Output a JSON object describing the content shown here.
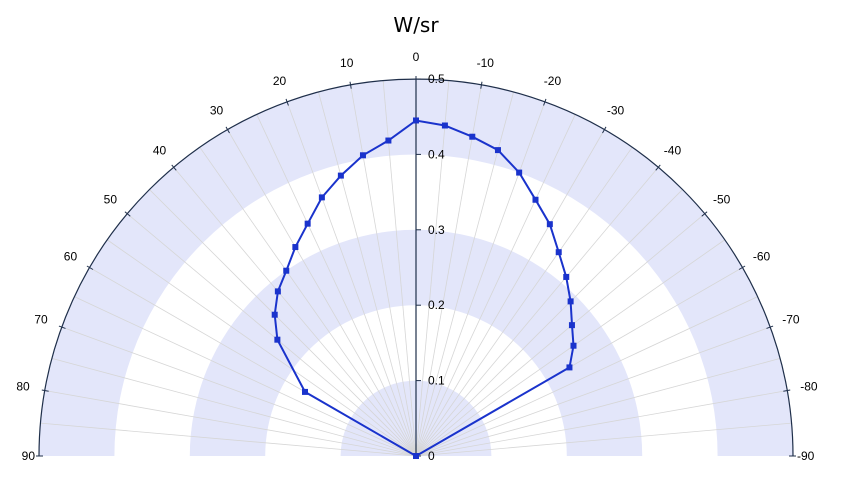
{
  "chart_data": {
    "type": "polar",
    "title": "W/sr",
    "angle_range": [
      -90,
      90
    ],
    "angle_zero": "top",
    "angle_positive_direction": "left",
    "angle_ticks": [
      90,
      80,
      70,
      60,
      50,
      40,
      30,
      20,
      10,
      0,
      -10,
      -20,
      -30,
      -40,
      -50,
      -60,
      -70,
      -80,
      -90
    ],
    "angle_tick_labels": [
      "90",
      "80",
      "70",
      "60",
      "50",
      "40",
      "30",
      "20",
      "10",
      "0",
      "-10",
      "-20",
      "-30",
      "-40",
      "-50",
      "-60",
      "-70",
      "-80",
      "-90"
    ],
    "rlim": [
      0,
      0.5
    ],
    "r_ticks": [
      0,
      0.1,
      0.2,
      0.3,
      0.4,
      0.5
    ],
    "r_tick_labels": [
      "0",
      "0.1",
      "0.2",
      "0.3",
      "0.4",
      "0.5"
    ],
    "band_color": "#e3e6fa",
    "grid_color": "#d6d6d6",
    "axis_color": "#1f2f4a",
    "series": [
      {
        "color": "#1a33cc",
        "marker": "square",
        "angles": [
          90,
          60,
          50,
          45,
          40,
          35,
          30,
          25,
          20,
          15,
          10,
          5,
          0,
          -5,
          -10,
          -15,
          -20,
          -25,
          -30,
          -35,
          -40,
          -45,
          -50,
          -55,
          -60,
          -90
        ],
        "values": [
          0.0,
          0.17,
          0.24,
          0.265,
          0.285,
          0.3,
          0.32,
          0.34,
          0.365,
          0.385,
          0.405,
          0.42,
          0.445,
          0.44,
          0.43,
          0.42,
          0.4,
          0.375,
          0.355,
          0.33,
          0.31,
          0.29,
          0.27,
          0.255,
          0.235,
          0.0
        ]
      }
    ]
  }
}
